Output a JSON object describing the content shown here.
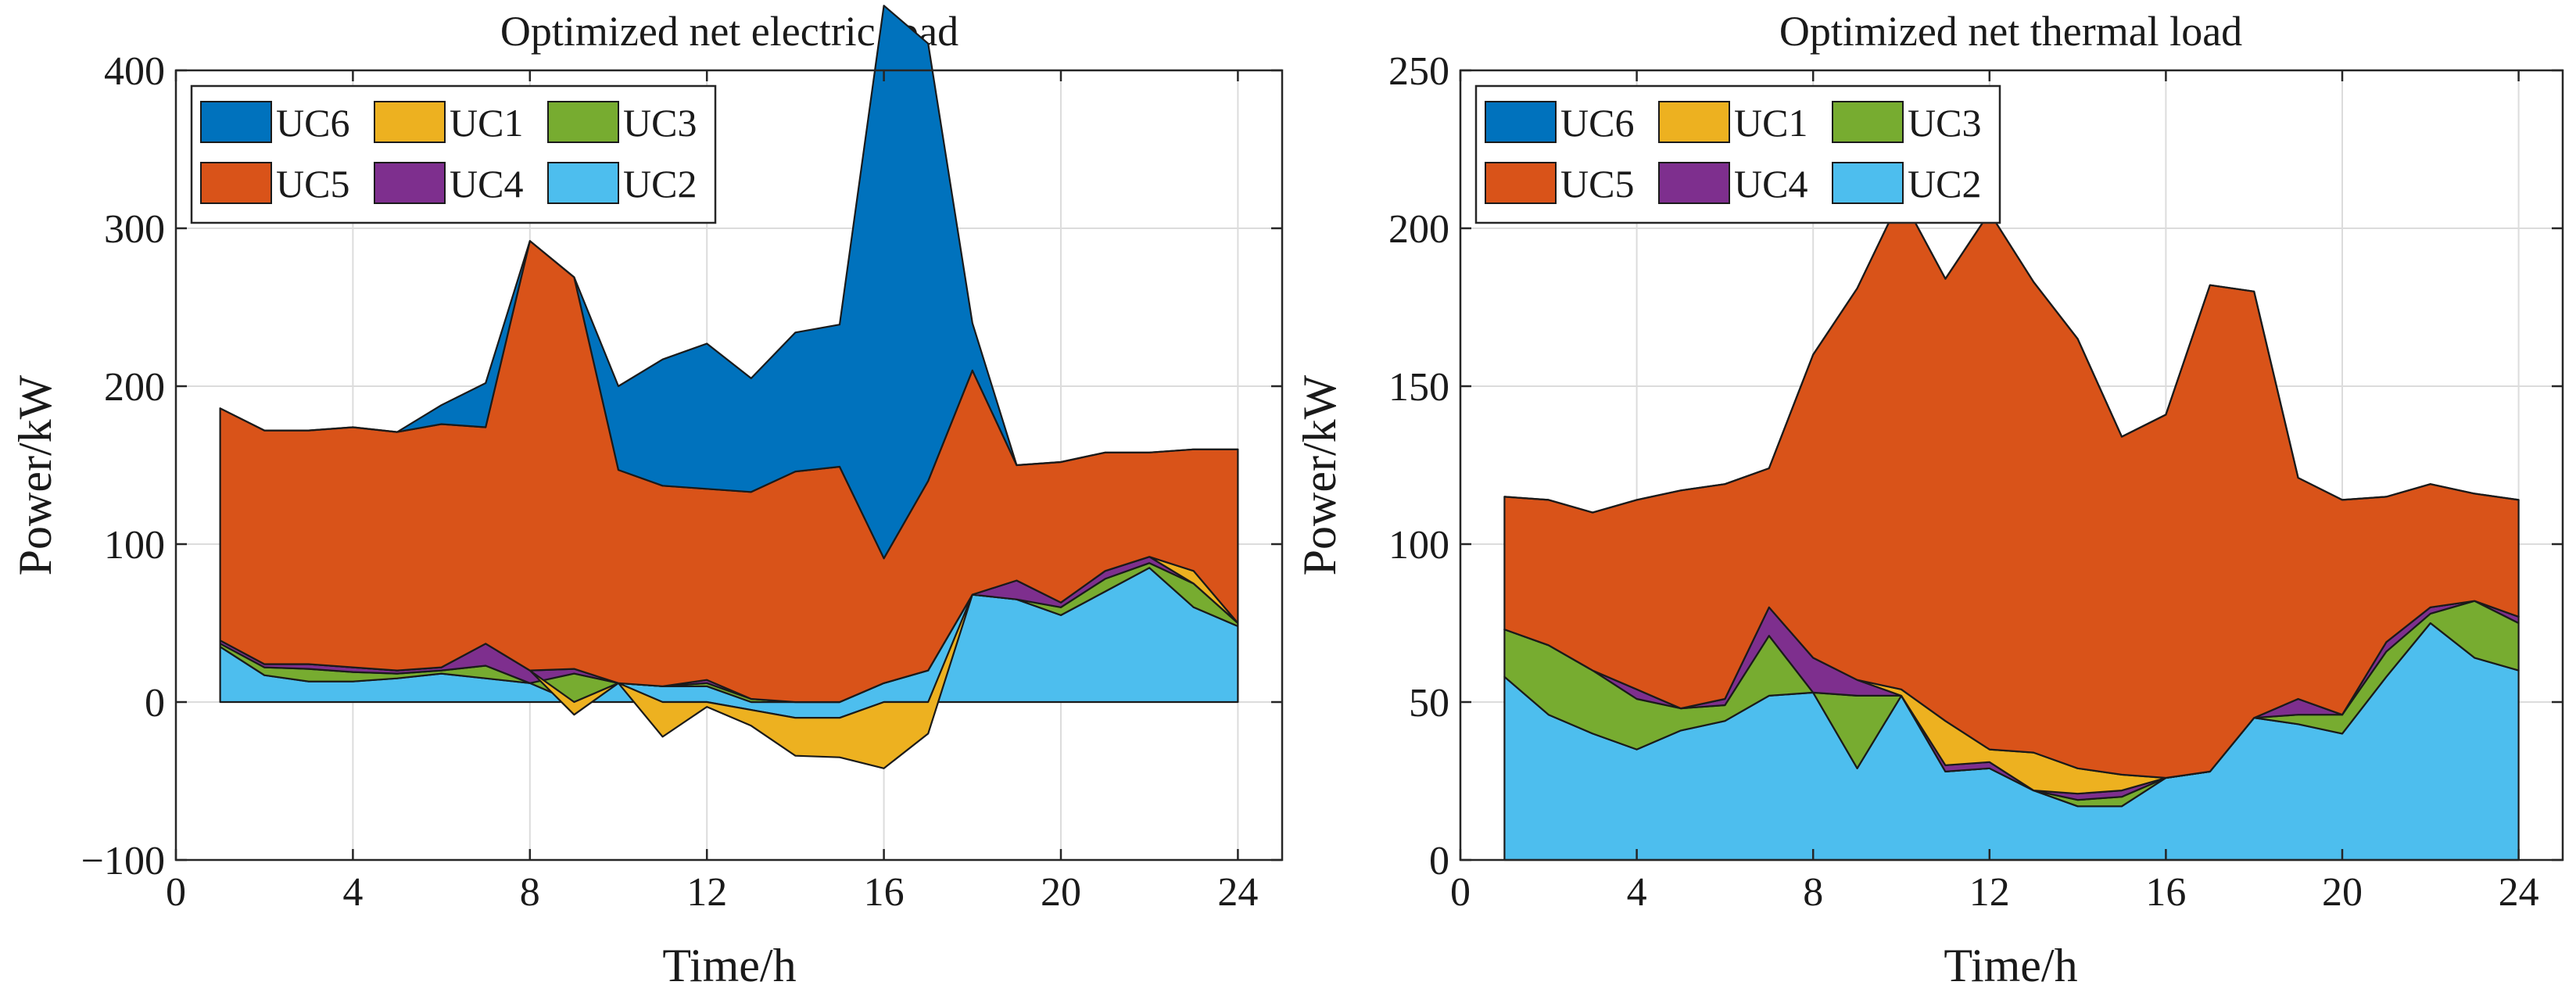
{
  "colors": {
    "UC6": "#0072BD",
    "UC1": "#EDB120",
    "UC3": "#77AC30",
    "UC5": "#D95319",
    "UC4": "#7E2F8E",
    "UC2": "#4DBEEE"
  },
  "chart_data": [
    {
      "type": "area",
      "title": "Optimized net electric load",
      "xlabel": "Time/h",
      "ylabel": "Power/kW",
      "xlim": [
        0,
        25
      ],
      "ylim": [
        -100,
        400
      ],
      "xticks": [
        0,
        4,
        8,
        12,
        16,
        20,
        24
      ],
      "yticks": [
        -100,
        0,
        100,
        200,
        300,
        400
      ],
      "tick_labels_x": [
        "0",
        "4",
        "8",
        "12",
        "16",
        "20",
        "24"
      ],
      "tick_labels_y": [
        "−100",
        "0",
        "100",
        "200",
        "300",
        "400"
      ],
      "grid": true,
      "legend_position": "top-left",
      "legend": [
        "UC6",
        "UC1",
        "UC3",
        "UC5",
        "UC4",
        "UC2"
      ],
      "x": [
        1,
        2,
        3,
        4,
        5,
        6,
        7,
        8,
        9,
        10,
        11,
        12,
        13,
        14,
        15,
        16,
        17,
        18,
        19,
        20,
        21,
        22,
        23,
        24
      ],
      "stack_order": [
        "UC2",
        "UC3",
        "UC4",
        "UC1",
        "UC5",
        "UC6"
      ],
      "series": [
        {
          "name": "UC2",
          "values": [
            35,
            17,
            13,
            13,
            15,
            18,
            15,
            12,
            0,
            12,
            10,
            10,
            -5,
            -10,
            -10,
            12,
            20,
            68,
            65,
            55,
            70,
            85,
            60,
            48
          ]
        },
        {
          "name": "UC3",
          "values": [
            2,
            5,
            8,
            6,
            3,
            2,
            8,
            0,
            18,
            0,
            0,
            2,
            2,
            0,
            0,
            0,
            0,
            0,
            0,
            5,
            8,
            3,
            15,
            2
          ]
        },
        {
          "name": "UC4",
          "values": [
            2,
            2,
            3,
            3,
            2,
            2,
            14,
            8,
            3,
            0,
            0,
            2,
            0,
            0,
            0,
            0,
            0,
            0,
            12,
            3,
            5,
            4,
            0,
            0
          ]
        },
        {
          "name": "UC1",
          "values": [
            0,
            0,
            0,
            0,
            0,
            0,
            0,
            0,
            -8,
            0,
            -22,
            -3,
            -10,
            -24,
            -25,
            -42,
            -20,
            0,
            0,
            0,
            0,
            0,
            8,
            0
          ]
        },
        {
          "name": "UC5",
          "values": [
            147,
            148,
            148,
            152,
            151,
            154,
            137,
            272,
            248,
            135,
            127,
            121,
            131,
            146,
            149,
            79,
            120,
            142,
            73,
            89,
            75,
            66,
            77,
            110
          ]
        },
        {
          "name": "UC6",
          "values": [
            0,
            0,
            0,
            0,
            0,
            12,
            28,
            0,
            0,
            53,
            80,
            92,
            72,
            88,
            90,
            350,
            277,
            30,
            0,
            0,
            0,
            0,
            0,
            0
          ]
        }
      ]
    },
    {
      "type": "area",
      "title": "Optimized net thermal load",
      "xlabel": "Time/h",
      "ylabel": "Power/kW",
      "xlim": [
        0,
        25
      ],
      "ylim": [
        0,
        250
      ],
      "xticks": [
        0,
        4,
        8,
        12,
        16,
        20,
        24
      ],
      "yticks": [
        0,
        50,
        100,
        150,
        200,
        250
      ],
      "tick_labels_x": [
        "0",
        "4",
        "8",
        "12",
        "16",
        "20",
        "24"
      ],
      "tick_labels_y": [
        "0",
        "50",
        "100",
        "150",
        "200",
        "250"
      ],
      "grid": true,
      "legend_position": "top-left",
      "legend": [
        "UC6",
        "UC1",
        "UC3",
        "UC5",
        "UC4",
        "UC2"
      ],
      "x": [
        1,
        2,
        3,
        4,
        5,
        6,
        7,
        8,
        9,
        10,
        11,
        12,
        13,
        14,
        15,
        16,
        17,
        18,
        19,
        20,
        21,
        22,
        23,
        24
      ],
      "stack_order": [
        "UC2",
        "UC3",
        "UC4",
        "UC1",
        "UC5",
        "UC6"
      ],
      "series": [
        {
          "name": "UC2",
          "values": [
            58,
            46,
            40,
            35,
            41,
            44,
            52,
            53,
            29,
            52,
            28,
            29,
            22,
            17,
            17,
            26,
            28,
            45,
            43,
            40,
            58,
            75,
            64,
            60
          ]
        },
        {
          "name": "UC3",
          "values": [
            15,
            22,
            20,
            16,
            7,
            5,
            19,
            0,
            23,
            0,
            0,
            0,
            0,
            2,
            3,
            0,
            0,
            0,
            3,
            6,
            8,
            3,
            18,
            15
          ]
        },
        {
          "name": "UC4",
          "values": [
            0,
            0,
            0,
            3,
            0,
            2,
            9,
            11,
            5,
            0,
            2,
            2,
            0,
            2,
            2,
            0,
            0,
            0,
            5,
            0,
            3,
            2,
            0,
            2
          ]
        },
        {
          "name": "UC1",
          "values": [
            0,
            0,
            0,
            0,
            0,
            0,
            0,
            0,
            0,
            2,
            14,
            4,
            12,
            8,
            5,
            0,
            0,
            0,
            0,
            0,
            0,
            0,
            0,
            0
          ]
        },
        {
          "name": "UC5",
          "values": [
            42,
            46,
            50,
            60,
            69,
            68,
            44,
            96,
            124,
            156,
            140,
            170,
            149,
            136,
            107,
            115,
            154,
            135,
            70,
            68,
            46,
            39,
            34,
            37
          ]
        },
        {
          "name": "UC6",
          "values": [
            0,
            0,
            0,
            0,
            0,
            0,
            0,
            0,
            0,
            0,
            0,
            0,
            0,
            0,
            0,
            0,
            0,
            0,
            0,
            0,
            0,
            0,
            0,
            0
          ]
        }
      ]
    }
  ]
}
